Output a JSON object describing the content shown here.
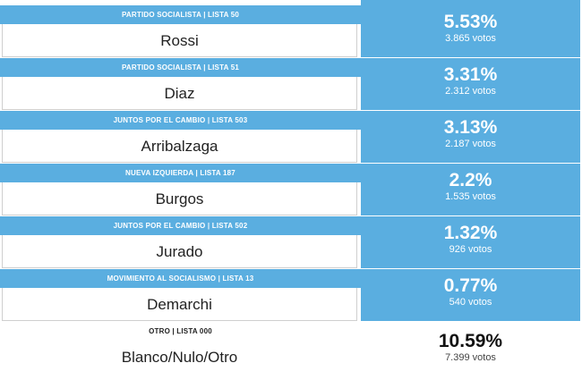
{
  "results": [
    {
      "party": "PARTIDO SOCIALISTA | LISTA 50",
      "candidate": "Rossi",
      "percent": "5.53%",
      "votes": "3.865 votos"
    },
    {
      "party": "PARTIDO SOCIALISTA | LISTA 51",
      "candidate": "Diaz",
      "percent": "3.31%",
      "votes": "2.312 votos"
    },
    {
      "party": "JUNTOS POR EL CAMBIO | LISTA 503",
      "candidate": "Arribalzaga",
      "percent": "3.13%",
      "votes": "2.187 votos"
    },
    {
      "party": "NUEVA IZQUIERDA | LISTA 187",
      "candidate": "Burgos",
      "percent": "2.2%",
      "votes": "1.535 votos"
    },
    {
      "party": "JUNTOS POR EL CAMBIO | LISTA 502",
      "candidate": "Jurado",
      "percent": "1.32%",
      "votes": "926 votos"
    },
    {
      "party": "MOVIMIENTO AL SOCIALISMO | LISTA 13",
      "candidate": "Demarchi",
      "percent": "0.77%",
      "votes": "540 votos"
    },
    {
      "party": "OTRO | LISTA 000",
      "candidate": "Blanco/Nulo/Otro",
      "percent": "10.59%",
      "votes": "7.399 votos"
    }
  ],
  "colors": {
    "accent": "#5aaee0",
    "background": "#ffffff",
    "text": "#222222"
  }
}
